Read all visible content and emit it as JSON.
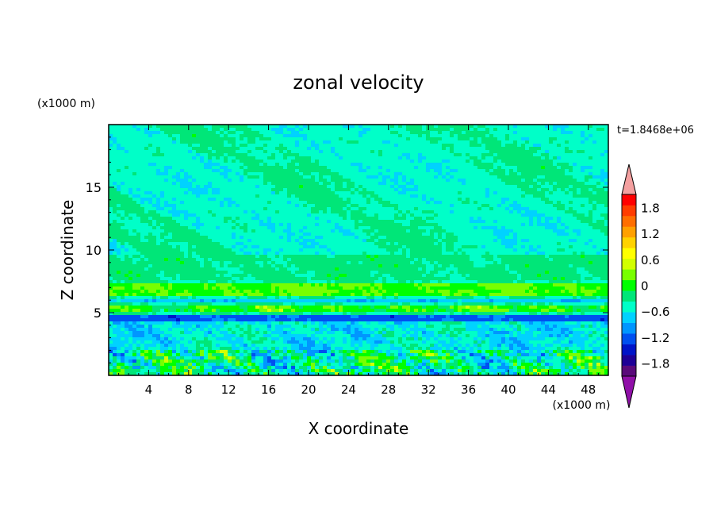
{
  "chart_data": {
    "type": "heatmap",
    "title": "zonal velocity",
    "xlabel": "X coordinate",
    "ylabel": "Z coordinate",
    "x_unit_label": "(x1000 m)",
    "y_unit_label": "(x1000 m)",
    "time_label": "t=1.8468e+06",
    "xlim": [
      0,
      50
    ],
    "ylim": [
      0,
      20
    ],
    "x_ticks": [
      "4",
      "8",
      "12",
      "16",
      "20",
      "24",
      "28",
      "32",
      "36",
      "40",
      "44",
      "48"
    ],
    "y_ticks": [
      "5",
      "10",
      "15"
    ],
    "colorbar": {
      "min": -2.1,
      "max": 2.1,
      "step": 0.3,
      "tick_labels": [
        "1.8",
        "1.2",
        "0.6",
        "0",
        "−0.6",
        "−1.2",
        "−1.8"
      ],
      "extend": "both",
      "colors": [
        "#5a0a7a",
        "#1e0096",
        "#0014c8",
        "#0050f0",
        "#0096ff",
        "#00d2ff",
        "#00ffc8",
        "#00e678",
        "#00ff00",
        "#78ff00",
        "#d2ff00",
        "#ffff00",
        "#ffd200",
        "#ffa000",
        "#ff6e00",
        "#ff3c00",
        "#ff0000"
      ],
      "over_color": "#f4a0a0",
      "under_color": "#9010a8"
    },
    "field_bands": [
      {
        "z_range": [
          0,
          2
        ],
        "mean": 0.0,
        "variability": "high",
        "dominant": [
          "green",
          "cyan",
          "yellow",
          "blue"
        ]
      },
      {
        "z_range": [
          2,
          4.5
        ],
        "mean": -0.3,
        "variability": "medium",
        "dominant": [
          "cyan",
          "green"
        ]
      },
      {
        "z_range": [
          4.2,
          4.7
        ],
        "mean": -1.0,
        "variability": "low",
        "dominant": [
          "blue"
        ]
      },
      {
        "z_range": [
          5,
          5.6
        ],
        "mean": 0.5,
        "variability": "medium",
        "dominant": [
          "yellow"
        ]
      },
      {
        "z_range": [
          5.8,
          6.2
        ],
        "mean": -0.5,
        "variability": "low",
        "dominant": [
          "cyan"
        ]
      },
      {
        "z_range": [
          6.3,
          7.3
        ],
        "mean": 0.6,
        "variability": "low",
        "dominant": [
          "yellow",
          "green"
        ]
      },
      {
        "z_range": [
          7.5,
          9.5
        ],
        "mean": 0.1,
        "variability": "low",
        "dominant": [
          "green"
        ]
      },
      {
        "z_range": [
          9.5,
          20
        ],
        "mean": -0.2,
        "variability": "low",
        "dominant": [
          "cyan-green",
          "green"
        ]
      }
    ]
  }
}
